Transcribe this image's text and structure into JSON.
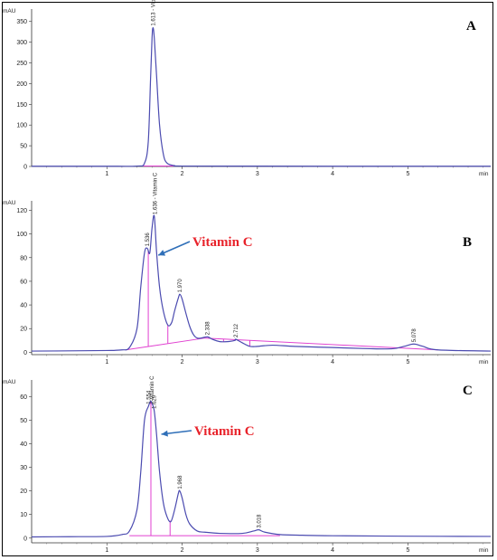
{
  "chart_data": [
    {
      "type": "line",
      "panel": "A",
      "ylabel": "mAU",
      "xlabel": "min",
      "xlim": [
        0,
        6.1
      ],
      "ylim": [
        0,
        380
      ],
      "y_ticks": [
        0,
        50,
        100,
        150,
        200,
        250,
        300,
        350
      ],
      "x_ticks": [
        1,
        2,
        3,
        4,
        5
      ],
      "line_color": "#4b4bb0",
      "baseline_color": "#e040d0",
      "series": [
        {
          "x": [
            0,
            0.5,
            1.0,
            1.4,
            1.5,
            1.55,
            1.58,
            1.6,
            1.613,
            1.63,
            1.66,
            1.7,
            1.75,
            1.8,
            1.9,
            2.0,
            3.0,
            4.0,
            5.0,
            6.1
          ],
          "y": [
            0.5,
            0.5,
            0.6,
            1,
            8,
            60,
            210,
            310,
            335,
            310,
            220,
            100,
            30,
            8,
            2,
            1,
            0.8,
            0.6,
            0.5,
            0.5
          ]
        }
      ],
      "baselines": [
        {
          "x": [
            1.45,
            2.35
          ],
          "y": [
            1,
            1
          ]
        }
      ],
      "peak_labels": [
        {
          "x": 1.613,
          "y": 335,
          "text": "1.613 - Vitamin C"
        }
      ]
    },
    {
      "type": "line",
      "panel": "B",
      "ylabel": "mAU",
      "xlabel": "min",
      "xlim": [
        0,
        6.1
      ],
      "ylim": [
        -2,
        128
      ],
      "y_ticks": [
        0,
        20,
        40,
        60,
        80,
        100,
        120
      ],
      "x_ticks": [
        1,
        2,
        3,
        4,
        5
      ],
      "line_color": "#4b4bb0",
      "baseline_color": "#e040d0",
      "series": [
        {
          "x": [
            0,
            0.5,
            1.0,
            1.2,
            1.3,
            1.4,
            1.45,
            1.5,
            1.536,
            1.57,
            1.6,
            1.63,
            1.66,
            1.7,
            1.75,
            1.81,
            1.86,
            1.9,
            1.95,
            1.97,
            2.0,
            2.05,
            2.1,
            2.15,
            2.2,
            2.25,
            2.338,
            2.4,
            2.5,
            2.6,
            2.7,
            2.712,
            2.8,
            2.9,
            3.0,
            3.2,
            3.5,
            4.0,
            4.5,
            4.8,
            4.95,
            5.078,
            5.2,
            5.4,
            6.1
          ],
          "y": [
            1,
            1.2,
            1.5,
            2,
            4,
            20,
            55,
            84,
            88,
            84,
            105,
            115,
            85,
            55,
            35,
            23,
            25,
            35,
            46,
            49,
            45,
            33,
            22,
            15,
            12,
            12,
            13,
            11,
            9,
            9,
            10,
            11,
            8,
            5,
            5,
            6,
            5,
            4,
            3,
            3,
            5,
            7,
            5,
            2,
            1
          ]
        }
      ],
      "baselines": [
        {
          "x": [
            1.25,
            2.3,
            5.4
          ],
          "y": [
            2,
            12,
            2
          ]
        }
      ],
      "drop_lines": [
        1.55,
        1.81,
        2.55,
        2.9
      ],
      "peak_labels": [
        {
          "x": 1.536,
          "y": 88,
          "text": "1.536"
        },
        {
          "x": 1.64,
          "y": 115,
          "text": "1.636 - Vitamin C"
        },
        {
          "x": 1.97,
          "y": 49,
          "text": "1.970"
        },
        {
          "x": 2.338,
          "y": 13,
          "text": "2.338"
        },
        {
          "x": 2.712,
          "y": 11,
          "text": "2.712"
        },
        {
          "x": 5.078,
          "y": 7,
          "text": "5.078"
        }
      ],
      "annotation": {
        "text": "Vitamin C",
        "arrow_to": {
          "x": 1.66,
          "y": 82
        }
      }
    },
    {
      "type": "line",
      "panel": "C",
      "ylabel": "mAU",
      "xlabel": "min",
      "xlim": [
        0,
        6.1
      ],
      "ylim": [
        -2,
        67
      ],
      "y_ticks": [
        0,
        10,
        20,
        30,
        40,
        50,
        60
      ],
      "x_ticks": [
        1,
        2,
        3,
        4,
        5
      ],
      "line_color": "#4b4bb0",
      "baseline_color": "#e040d0",
      "series": [
        {
          "x": [
            0,
            0.5,
            1.0,
            1.2,
            1.3,
            1.4,
            1.45,
            1.5,
            1.554,
            1.58,
            1.6,
            1.629,
            1.66,
            1.7,
            1.75,
            1.8,
            1.85,
            1.9,
            1.95,
            1.968,
            2.0,
            2.05,
            2.1,
            2.2,
            2.3,
            2.5,
            2.8,
            2.95,
            3.018,
            3.1,
            3.3,
            3.6,
            4.0,
            5.0,
            6.1
          ],
          "y": [
            0.5,
            0.6,
            0.7,
            1.5,
            3,
            12,
            28,
            50,
            56,
            58,
            57,
            54,
            44,
            28,
            15,
            9,
            7,
            12,
            19,
            20,
            17,
            10,
            6,
            3,
            2.5,
            2,
            2,
            3,
            3.5,
            2.5,
            1.5,
            1.2,
            1,
            0.8,
            0.7
          ]
        }
      ],
      "baselines": [
        {
          "x": [
            1.3,
            3.3
          ],
          "y": [
            1,
            1
          ]
        }
      ],
      "drop_lines": [
        1.585,
        1.84
      ],
      "peak_labels": [
        {
          "x": 1.554,
          "y": 56,
          "text": "1.554"
        },
        {
          "x": 1.629,
          "y": 54,
          "text": "1.629"
        },
        {
          "x": 1.6,
          "y": 58,
          "text": "Vitamin C"
        },
        {
          "x": 1.968,
          "y": 20,
          "text": "1.968"
        },
        {
          "x": 3.018,
          "y": 3.5,
          "text": "3.018"
        }
      ],
      "annotation": {
        "text": "Vitamin C",
        "arrow_to": {
          "x": 1.7,
          "y": 44
        }
      }
    }
  ]
}
